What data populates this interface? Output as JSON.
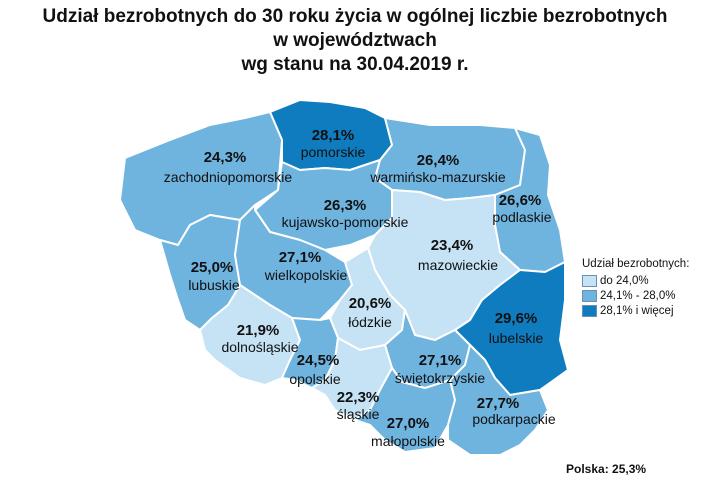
{
  "title": {
    "line1": "Udział bezrobotnych do 30 roku życia w ogólnej liczbie bezrobotnych",
    "line2": "w województwach",
    "line3": "wg stanu na 30.04.2019 r."
  },
  "colors": {
    "low": "#c5e3f4",
    "mid": "#6fb3df",
    "high": "#0f7cc0",
    "border": "#ffffff"
  },
  "regions": [
    {
      "id": "pomorskie",
      "name": "pomorskie",
      "value": "28,1%",
      "class": "high"
    },
    {
      "id": "zachodniopomorskie",
      "name": "zachodniopomorskie",
      "value": "24,3%",
      "class": "mid"
    },
    {
      "id": "warminsko-mazurskie",
      "name": "warmińsko-mazurskie",
      "value": "26,4%",
      "class": "mid"
    },
    {
      "id": "kujawsko-pomorskie",
      "name": "kujawsko-pomorskie",
      "value": "26,3%",
      "class": "mid"
    },
    {
      "id": "podlaskie",
      "name": "podlaskie",
      "value": "26,6%",
      "class": "mid"
    },
    {
      "id": "mazowieckie",
      "name": "mazowieckie",
      "value": "23,4%",
      "class": "low"
    },
    {
      "id": "lubuskie",
      "name": "lubuskie",
      "value": "25,0%",
      "class": "mid"
    },
    {
      "id": "wielkopolskie",
      "name": "wielkopolskie",
      "value": "27,1%",
      "class": "mid"
    },
    {
      "id": "lodzkie",
      "name": "łódzkie",
      "value": "20,6%",
      "class": "low"
    },
    {
      "id": "lubelskie",
      "name": "lubelskie",
      "value": "29,6%",
      "class": "high"
    },
    {
      "id": "dolnoslaskie",
      "name": "dolnośląskie",
      "value": "21,9%",
      "class": "low"
    },
    {
      "id": "opolskie",
      "name": "opolskie",
      "value": "24,5%",
      "class": "mid"
    },
    {
      "id": "swietokrzyskie",
      "name": "świętokrzyskie",
      "value": "27,1%",
      "class": "mid"
    },
    {
      "id": "slaskie",
      "name": "śląskie",
      "value": "22,3%",
      "class": "low"
    },
    {
      "id": "malopolskie",
      "name": "małopolskie",
      "value": "27,0%",
      "class": "mid"
    },
    {
      "id": "podkarpackie",
      "name": "podkarpackie",
      "value": "27,7%",
      "class": "mid"
    }
  ],
  "legend": {
    "title": "Udział bezrobotnych:",
    "items": [
      {
        "label": "do 24,0%",
        "class": "low"
      },
      {
        "label": "24,1% - 28,0%",
        "class": "mid"
      },
      {
        "label": "28,1% i więcej",
        "class": "high"
      }
    ]
  },
  "total": "Polska: 25,3%"
}
